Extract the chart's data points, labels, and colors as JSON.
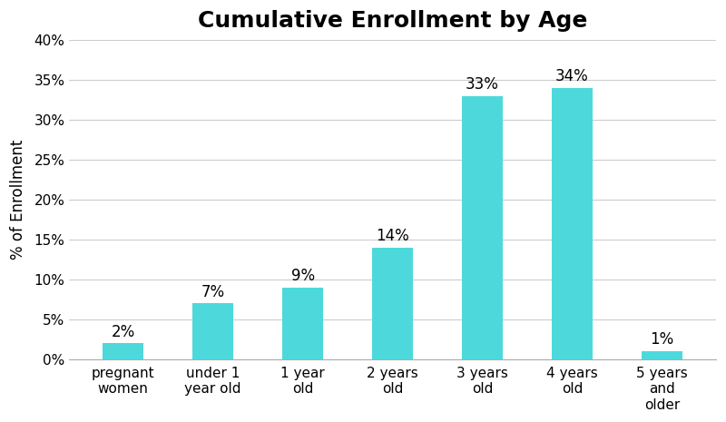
{
  "title": "Cumulative Enrollment by Age",
  "categories": [
    "pregnant\nwomen",
    "under 1\nyear old",
    "1 year\nold",
    "2 years\nold",
    "3 years\nold",
    "4 years\nold",
    "5 years\nand\nolder"
  ],
  "values": [
    2,
    7,
    9,
    14,
    33,
    34,
    1
  ],
  "bar_color": "#4DD9DC",
  "ylabel": "% of Enrollment",
  "ylim": [
    0,
    40
  ],
  "yticks": [
    0,
    5,
    10,
    15,
    20,
    25,
    30,
    35,
    40
  ],
  "title_fontsize": 18,
  "label_fontsize": 12,
  "tick_fontsize": 11,
  "annotation_fontsize": 12,
  "background_color": "#ffffff",
  "grid_color": "#cccccc"
}
